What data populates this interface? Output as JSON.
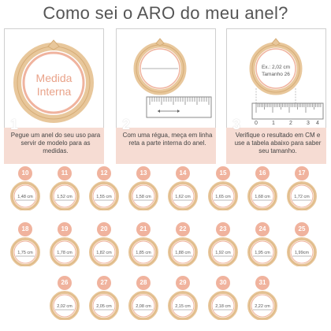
{
  "title": "Como sei o ARO do meu anel?",
  "colors": {
    "gold": "#e8c79b",
    "gold_dark": "#d6ad77",
    "pink": "#f0b39e",
    "panel": "#f6dcd3"
  },
  "steps": [
    {
      "number": "1",
      "text": "Pegue um anel do seu uso para servir de modelo para as medidas.",
      "label_line1": "Medida",
      "label_line2": "Interna"
    },
    {
      "number": "2",
      "text": "Com uma régua, meça em linha reta a parte interna do anel."
    },
    {
      "number": "3",
      "text": "Verifique o resultado em CM e use a tabela abaixo para saber seu tamanho.",
      "example_line1": "Ex.: 2,02 cm",
      "example_line2": "Tamanho 26",
      "ruler_ticks": [
        "0",
        "1",
        "2",
        "3",
        "4"
      ]
    }
  ],
  "sizes": [
    {
      "aro": "10",
      "cm": "1,48 cm"
    },
    {
      "aro": "11",
      "cm": "1,52 cm"
    },
    {
      "aro": "12",
      "cm": "1,55 cm"
    },
    {
      "aro": "13",
      "cm": "1,58 cm"
    },
    {
      "aro": "14",
      "cm": "1,62 cm"
    },
    {
      "aro": "15",
      "cm": "1,65 cm"
    },
    {
      "aro": "16",
      "cm": "1,68 cm"
    },
    {
      "aro": "17",
      "cm": "1,72 cm"
    },
    {
      "aro": "18",
      "cm": "1,75 cm"
    },
    {
      "aro": "19",
      "cm": "1,78 cm"
    },
    {
      "aro": "20",
      "cm": "1,82 cm"
    },
    {
      "aro": "21",
      "cm": "1,85 cm"
    },
    {
      "aro": "22",
      "cm": "1,88 cm"
    },
    {
      "aro": "23",
      "cm": "1,92 cm"
    },
    {
      "aro": "24",
      "cm": "1,95 cm"
    },
    {
      "aro": "25",
      "cm": "1,99cm"
    },
    {
      "aro": "26",
      "cm": "2,02 cm"
    },
    {
      "aro": "27",
      "cm": "2,05 cm"
    },
    {
      "aro": "28",
      "cm": "2,08 cm"
    },
    {
      "aro": "29",
      "cm": "2,15 cm"
    },
    {
      "aro": "30",
      "cm": "2,18 cm"
    },
    {
      "aro": "31",
      "cm": "2,22 cm"
    }
  ]
}
